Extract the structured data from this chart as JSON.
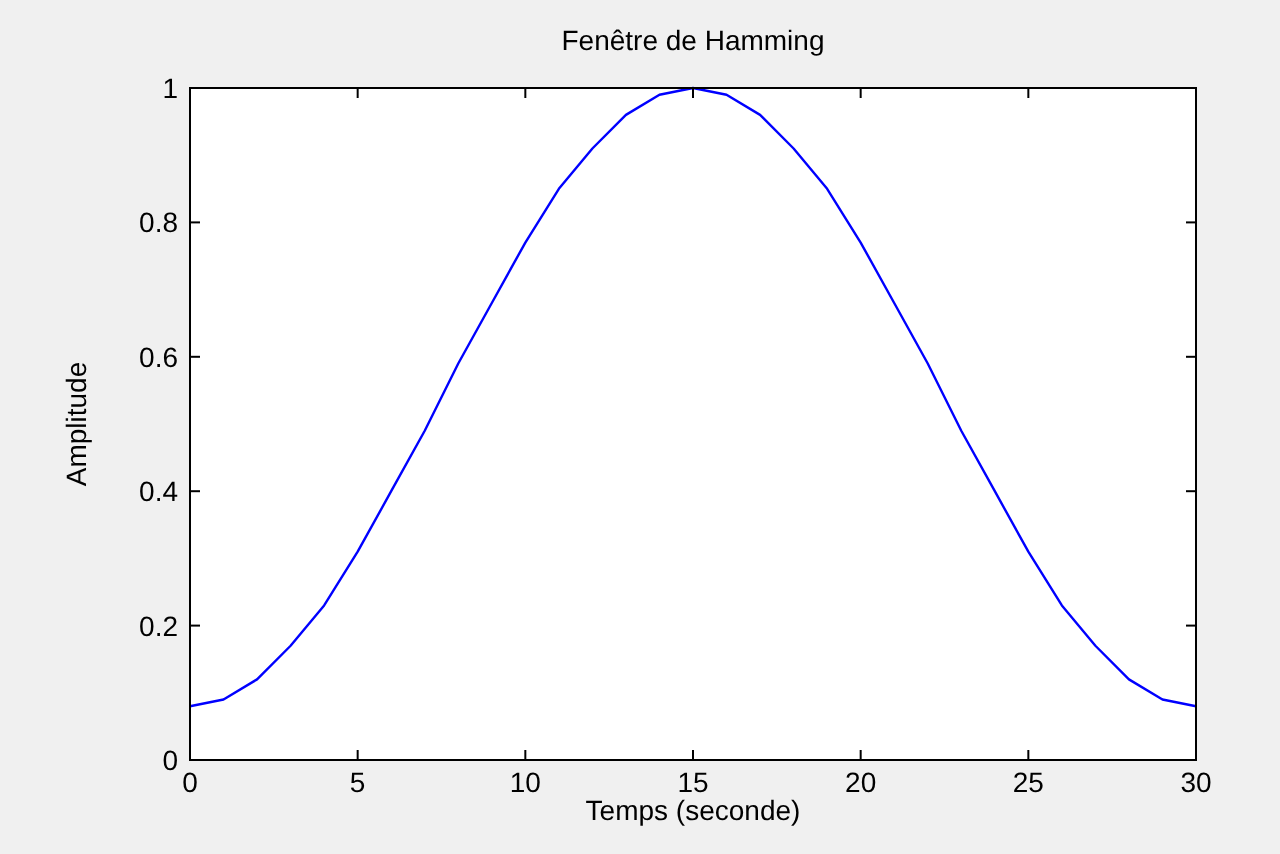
{
  "chart_data": {
    "type": "line",
    "title": "Fenêtre de Hamming",
    "xlabel": "Temps (seconde)",
    "ylabel": "Amplitude",
    "x": [
      0,
      1,
      2,
      3,
      4,
      5,
      6,
      7,
      8,
      9,
      10,
      11,
      12,
      13,
      14,
      15,
      16,
      17,
      18,
      19,
      20,
      21,
      22,
      23,
      24,
      25,
      26,
      27,
      28,
      29,
      30
    ],
    "series": [
      {
        "color": "#0000ff",
        "values": [
          0.08,
          0.09,
          0.12,
          0.17,
          0.23,
          0.31,
          0.4,
          0.49,
          0.59,
          0.68,
          0.77,
          0.85,
          0.91,
          0.96,
          0.99,
          1.0,
          0.99,
          0.96,
          0.91,
          0.85,
          0.77,
          0.68,
          0.59,
          0.49,
          0.4,
          0.31,
          0.23,
          0.17,
          0.12,
          0.09,
          0.08
        ]
      }
    ],
    "xlim": [
      0,
      30
    ],
    "xticks": [
      0,
      5,
      10,
      15,
      20,
      25,
      30
    ],
    "ylim": [
      0,
      1
    ],
    "yticks": [
      0,
      0.2,
      0.4,
      0.6,
      0.8,
      1
    ],
    "grid": false,
    "marker": "none",
    "line_style": "solid"
  }
}
